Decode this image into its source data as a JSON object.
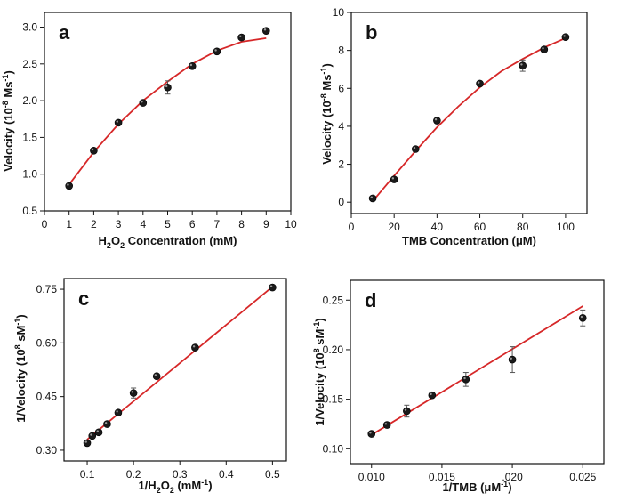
{
  "chart_data": [
    {
      "panel": "a",
      "type": "scatter",
      "xlabel": "H2O2 Concentration (mM)",
      "ylabel": "Velocity (10-8 Ms-1)",
      "xlim": [
        0,
        10
      ],
      "ylim": [
        0.5,
        3.2
      ],
      "xticks": [
        0,
        1,
        2,
        3,
        4,
        5,
        6,
        7,
        8,
        9,
        10
      ],
      "xtick_labels": [
        "0",
        "1",
        "2",
        "3",
        "4",
        "5",
        "6",
        "7",
        "8",
        "9",
        "10"
      ],
      "yticks": [
        0.5,
        1.0,
        1.5,
        2.0,
        2.5,
        3.0
      ],
      "ytick_labels": [
        "0.5",
        "1.0",
        "1.5",
        "2.0",
        "2.5",
        "3.0"
      ],
      "points": [
        {
          "x": 1,
          "y": 0.84
        },
        {
          "x": 2,
          "y": 1.32
        },
        {
          "x": 3,
          "y": 1.7
        },
        {
          "x": 4,
          "y": 1.97
        },
        {
          "x": 5,
          "y": 2.18,
          "err": 0.09
        },
        {
          "x": 6,
          "y": 2.47
        },
        {
          "x": 7,
          "y": 2.67
        },
        {
          "x": 8,
          "y": 2.86
        },
        {
          "x": 9,
          "y": 2.95
        }
      ],
      "fit": {
        "type": "curve",
        "color": "#d62728",
        "points": [
          [
            1,
            0.86
          ],
          [
            2,
            1.3
          ],
          [
            3,
            1.68
          ],
          [
            4,
            2.0
          ],
          [
            5,
            2.26
          ],
          [
            6,
            2.5
          ],
          [
            7,
            2.68
          ],
          [
            8,
            2.8
          ],
          [
            9,
            2.85
          ]
        ]
      },
      "grid": false
    },
    {
      "panel": "b",
      "type": "scatter",
      "xlabel": "TMB Concentration (μM)",
      "ylabel": "Velocity (10-8 Ms-1)",
      "xlim": [
        0,
        110
      ],
      "ylim": [
        -0.6,
        10
      ],
      "xticks": [
        0,
        20,
        40,
        60,
        80,
        100
      ],
      "xtick_labels": [
        "0",
        "20",
        "40",
        "60",
        "80",
        "100"
      ],
      "yticks": [
        0,
        2,
        4,
        6,
        8,
        10
      ],
      "ytick_labels": [
        "0",
        "2",
        "4",
        "6",
        "8",
        "10"
      ],
      "points": [
        {
          "x": 10,
          "y": 0.2
        },
        {
          "x": 20,
          "y": 1.2
        },
        {
          "x": 30,
          "y": 2.8
        },
        {
          "x": 40,
          "y": 4.3
        },
        {
          "x": 60,
          "y": 6.25
        },
        {
          "x": 80,
          "y": 7.2,
          "err": 0.3
        },
        {
          "x": 90,
          "y": 8.05
        },
        {
          "x": 100,
          "y": 8.7
        }
      ],
      "fit": {
        "type": "curve",
        "color": "#d62728",
        "points": [
          [
            10,
            0.05
          ],
          [
            20,
            1.4
          ],
          [
            30,
            2.7
          ],
          [
            40,
            3.95
          ],
          [
            50,
            5.05
          ],
          [
            60,
            6.05
          ],
          [
            70,
            6.9
          ],
          [
            80,
            7.55
          ],
          [
            90,
            8.15
          ],
          [
            100,
            8.65
          ]
        ]
      },
      "grid": false
    },
    {
      "panel": "c",
      "type": "scatter",
      "xlabel": "1/H2O2 (mM-1)",
      "ylabel": "1/Velocity (108 sM-1)",
      "xlim": [
        0.05,
        0.53
      ],
      "ylim": [
        0.27,
        0.78
      ],
      "xticks": [
        0.1,
        0.2,
        0.3,
        0.4,
        0.5
      ],
      "xtick_labels": [
        "0.1",
        "0.2",
        "0.3",
        "0.4",
        "0.5"
      ],
      "yticks": [
        0.3,
        0.45,
        0.6,
        0.75
      ],
      "ytick_labels": [
        "0.30",
        "0.45",
        "0.60",
        "0.75"
      ],
      "points": [
        {
          "x": 0.1,
          "y": 0.32
        },
        {
          "x": 0.111,
          "y": 0.34
        },
        {
          "x": 0.125,
          "y": 0.35
        },
        {
          "x": 0.143,
          "y": 0.373
        },
        {
          "x": 0.167,
          "y": 0.405
        },
        {
          "x": 0.2,
          "y": 0.46,
          "err": 0.014
        },
        {
          "x": 0.25,
          "y": 0.507
        },
        {
          "x": 0.333,
          "y": 0.587
        },
        {
          "x": 0.5,
          "y": 0.755
        }
      ],
      "fit": {
        "type": "line",
        "color": "#d62728",
        "points": [
          [
            0.1,
            0.33
          ],
          [
            0.5,
            0.757
          ]
        ]
      },
      "grid": false
    },
    {
      "panel": "d",
      "type": "scatter",
      "xlabel": "1/TMB (μM-1)",
      "ylabel": "1/Velocity (108 sM-1)",
      "xlim": [
        0.0085,
        0.0265
      ],
      "ylim": [
        0.085,
        0.27
      ],
      "xticks": [
        0.01,
        0.015,
        0.02,
        0.025
      ],
      "xtick_labels": [
        "0.010",
        "0.015",
        ".020",
        "0.025"
      ],
      "yticks": [
        0.1,
        0.15,
        0.2,
        0.25
      ],
      "ytick_labels": [
        "0.10",
        "0.15",
        "0.20",
        "0.25"
      ],
      "points": [
        {
          "x": 0.01,
          "y": 0.115
        },
        {
          "x": 0.0111,
          "y": 0.124
        },
        {
          "x": 0.0125,
          "y": 0.138,
          "err": 0.006
        },
        {
          "x": 0.0143,
          "y": 0.154
        },
        {
          "x": 0.0167,
          "y": 0.17,
          "err": 0.007
        },
        {
          "x": 0.02,
          "y": 0.19,
          "err": 0.013
        },
        {
          "x": 0.025,
          "y": 0.232,
          "err": 0.008
        }
      ],
      "fit": {
        "type": "line",
        "color": "#d62728",
        "points": [
          [
            0.01,
            0.114
          ],
          [
            0.025,
            0.244
          ]
        ]
      },
      "grid": false
    }
  ]
}
